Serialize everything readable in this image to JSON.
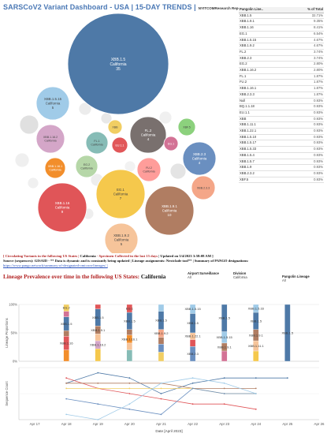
{
  "header": {
    "title": "SARSCoV2 Variant Dashboard - USA | 15-DAY TRENDS |",
    "credit": "NYITCOMResearch Report"
  },
  "bubbles": [
    {
      "name": "XBB.1.5",
      "label": "California",
      "count": "35",
      "color": "#4e79a7"
    },
    {
      "name": "XBB.1.5.15",
      "label": "California",
      "count": "5",
      "color": "#a0cbe8"
    },
    {
      "name": "XBB.1.16.2",
      "label": "California",
      "count": "",
      "color": "#d4a6c8"
    },
    {
      "name": "FL.1",
      "label": "California",
      "count": "",
      "color": "#86bcb6"
    },
    {
      "name": "XBB",
      "label": "",
      "count": "",
      "color": "#f1ce63"
    },
    {
      "name": "FL.2",
      "label": "California",
      "count": "4",
      "color": "#79706e"
    },
    {
      "name": "XBF.5",
      "label": "",
      "count": "",
      "color": "#8cd17d"
    },
    {
      "name": "EU.1.1",
      "label": "",
      "count": "",
      "color": "#e15759"
    },
    {
      "name": "EG.1",
      "label": "",
      "count": "",
      "color": "#d37295"
    },
    {
      "name": "XBB.2.3",
      "label": "California",
      "count": "4",
      "color": "#6a8fc0"
    },
    {
      "name": "XBB.1.16.1",
      "label": "California",
      "count": "",
      "color": "#f28e2b"
    },
    {
      "name": "EG.2",
      "label": "California",
      "count": "",
      "color": "#b6d7a8"
    },
    {
      "name": "FU.2",
      "label": "California",
      "count": "",
      "color": "#ff9d9a"
    },
    {
      "name": "XBB.2.3.3",
      "label": "",
      "count": "",
      "color": "#f4a688"
    },
    {
      "name": "XBB.1.16",
      "label": "California",
      "count": "9",
      "color": "#e05558"
    },
    {
      "name": "EG.1",
      "label": "California",
      "count": "7",
      "color": "#f5c84c"
    },
    {
      "name": "XBB.1.9.1",
      "label": "California",
      "count": "10",
      "color": "#b07d62"
    },
    {
      "name": "XBB.1.9.2",
      "label": "California",
      "count": "5",
      "color": "#f6c49a"
    }
  ],
  "lineage_table": {
    "headers": [
      "Pangolin Line..",
      "% of Total"
    ],
    "rows": [
      [
        "XBB.1.5",
        "32.71%"
      ],
      [
        "XBB.1.9.1",
        "9.35%"
      ],
      [
        "XBB.1.16",
        "8.41%"
      ],
      [
        "EG.1",
        "6.54%"
      ],
      [
        "XBB.1.5.15",
        "4.67%"
      ],
      [
        "XBB.1.9.2",
        "4.67%"
      ],
      [
        "FL.2",
        "3.74%"
      ],
      [
        "XBB.2.3",
        "3.74%"
      ],
      [
        "EG.2",
        "2.80%"
      ],
      [
        "XBB.1.16.2",
        "2.80%"
      ],
      [
        "FL.1",
        "1.87%"
      ],
      [
        "FU.2",
        "1.87%"
      ],
      [
        "XBB.1.16.1",
        "1.87%"
      ],
      [
        "XBB.2.3.3",
        "1.87%"
      ],
      [
        "Null",
        "0.93%"
      ],
      [
        "BQ.1.1.18",
        "0.93%"
      ],
      [
        "EU.1.1",
        "0.93%"
      ],
      [
        "XBB",
        "0.93%"
      ],
      [
        "XBB.1.11.1",
        "0.93%"
      ],
      [
        "XBB.1.22.1",
        "0.93%"
      ],
      [
        "XBB.1.5.10",
        "0.93%"
      ],
      [
        "XBB.1.5.17",
        "0.93%"
      ],
      [
        "XBB.1.5.33",
        "0.93%"
      ],
      [
        "XBB.1.5.4",
        "0.93%"
      ],
      [
        "XBB.1.5.7",
        "0.93%"
      ],
      [
        "XBB.1.9",
        "0.93%"
      ],
      [
        "XBB.2.3.2",
        "0.93%"
      ],
      [
        "XBF.5",
        "0.93%"
      ]
    ]
  },
  "info": {
    "line1_red_a": "[ Circulating Variants in the following US States |",
    "line1_state": "California",
    "line1_red_b": "- Specimen Collected in the last 15 days",
    "line1_updated": "| Updated on 5/4/2023 3:58:08 AM ]",
    "line2": "Source (sequences): GISAID - ** Data is dynamic and is constantly being updated | Lineage assignments: Nextclade tool** | Summary of PANGO designations:",
    "link": "https://www.pango.network/summary-of-designated-omicron-lineages/ |"
  },
  "prevalence": {
    "title_red": "Lineage Prevalence over time in the following US States:",
    "title_state": "California"
  },
  "filters": {
    "airport": {
      "label": "Airport Surveillance",
      "value": "All"
    },
    "division": {
      "label": "Division",
      "value": "California"
    },
    "pangolin": {
      "label": "Pangolin Lineage",
      "value": "All"
    }
  },
  "chart_data": {
    "type": "bar",
    "stacked": true,
    "title": "",
    "x": [
      "Apr 17",
      "Apr 18",
      "Apr 19",
      "Apr 20",
      "Apr 21",
      "Apr 22",
      "Apr 23",
      "Apr 24",
      "Apr 25",
      "Apr 26"
    ],
    "xlabel": "Date [April 2023]",
    "ylabel_top": "Lineage Proportions",
    "yticks_top": [
      "100%",
      "50%",
      "0%"
    ],
    "ylabel_bottom": "Sequence Count",
    "bars": [
      {
        "date": "Apr 18",
        "segments": [
          {
            "lineage": "EG.2",
            "pct": 12,
            "color": "#f1ce63",
            "label": "EG.2"
          },
          {
            "lineage": "XBB.1.5",
            "pct": 10,
            "color": "#d37295",
            "label": ""
          },
          {
            "lineage": "XBB.1.5",
            "pct": 24,
            "color": "#4e79a7",
            "label": "XBB.1.5"
          },
          {
            "lineage": "XBB.1.9.1",
            "pct": 10,
            "color": "#b07d62",
            "label": ""
          },
          {
            "lineage": "XBB.1.16",
            "pct": 24,
            "color": "#e05558",
            "label": "XBB.1.16"
          },
          {
            "lineage": "XBB.1.16.1",
            "pct": 20,
            "color": "#f28e2b",
            "label": ""
          }
        ]
      },
      {
        "date": "Apr 19",
        "segments": [
          {
            "lineage": "XBB.1.5",
            "pct": 8,
            "color": "#e15759",
            "label": ""
          },
          {
            "lineage": "XBB.1.5",
            "pct": 30,
            "color": "#4e79a7",
            "label": "XBB.1.5"
          },
          {
            "lineage": "XBB.1.9.1",
            "pct": 14,
            "color": "#b07d62",
            "label": "XBB.1.9.1"
          },
          {
            "lineage": "XBB.1.9.2",
            "pct": 12,
            "color": "#f6c49a",
            "label": ""
          },
          {
            "lineage": "XBB.1.16.2",
            "pct": 14,
            "color": "#d4a6c8",
            "label": "XBB.1.16.2"
          },
          {
            "lineage": "EG.1",
            "pct": 22,
            "color": "#f5c84c",
            "label": ""
          }
        ]
      },
      {
        "date": "Apr 20",
        "segments": [
          {
            "lineage": "EG.1",
            "pct": 14,
            "color": "#e15759",
            "label": "EG.1"
          },
          {
            "lineage": "XBB.1.5",
            "pct": 30,
            "color": "#4e79a7",
            "label": "XBB.1.5"
          },
          {
            "lineage": "XBB.1.9.1",
            "pct": 10,
            "color": "#b07d62",
            "label": ""
          },
          {
            "lineage": "XBB.1.16.1",
            "pct": 14,
            "color": "#f28e2b",
            "label": "XBB.1.16.1"
          },
          {
            "lineage": "XBB.1.9.2",
            "pct": 12,
            "color": "#f6c49a",
            "label": ""
          },
          {
            "lineage": "XBB.2.3",
            "pct": 20,
            "color": "#86bcb6",
            "label": ""
          }
        ]
      },
      {
        "date": "Apr 21",
        "segments": [
          {
            "lineage": "XBB.1.5",
            "pct": 12,
            "color": "#a0cbe8",
            "label": ""
          },
          {
            "lineage": "XBB.1.5",
            "pct": 32,
            "color": "#4e79a7",
            "label": "XBB.1.5"
          },
          {
            "lineage": "XBB.1.9.2",
            "pct": 14,
            "color": "#f4a688",
            "label": "XBB.1.9.2"
          },
          {
            "lineage": "XBB.1.9.1",
            "pct": 12,
            "color": "#b07d62",
            "label": ""
          },
          {
            "lineage": "XBB.2.3",
            "pct": 14,
            "color": "#6a8fc0",
            "label": ""
          },
          {
            "lineage": "EG.1",
            "pct": 16,
            "color": "#f1ce63",
            "label": ""
          }
        ]
      },
      {
        "date": "Apr 22",
        "segments": [
          {
            "lineage": "XBB.1.5.15",
            "pct": 16,
            "color": "#a0cbe8",
            "label": "XBB.1.5.15"
          },
          {
            "lineage": "XBB.1.5",
            "pct": 34,
            "color": "#4e79a7",
            "label": "XBB.1.5"
          },
          {
            "lineage": "XBB.1.22.1",
            "pct": 12,
            "color": "#f6c49a",
            "label": "XBB.1.22.1"
          },
          {
            "lineage": "XBB.1.16",
            "pct": 12,
            "color": "#e05558",
            "label": ""
          },
          {
            "lineage": "XBB.2.3",
            "pct": 26,
            "color": "#6a8fc0",
            "label": "XBB.2.3"
          }
        ]
      },
      {
        "date": "Apr 23",
        "segments": [
          {
            "lineage": "XBB.1.5",
            "pct": 48,
            "color": "#4e79a7",
            "label": "XBB.1.5"
          },
          {
            "lineage": "XBB.1.5.15",
            "pct": 20,
            "color": "#a0cbe8",
            "label": "XBB.1.5.15"
          },
          {
            "lineage": "XBB.1.9.1",
            "pct": 14,
            "color": "#b07d62",
            "label": "XBB.1.9.1"
          },
          {
            "lineage": "XBB.1.16",
            "pct": 18,
            "color": "#d37295",
            "label": ""
          }
        ]
      },
      {
        "date": "Apr 24",
        "segments": [
          {
            "lineage": "XBB.1.5.33",
            "pct": 14,
            "color": "#a0cbe8",
            "label": "XBB.1.5.33"
          },
          {
            "lineage": "XBB.1.5",
            "pct": 30,
            "color": "#4e79a7",
            "label": "XBB.1.5"
          },
          {
            "lineage": "XBB.1.9.1",
            "pct": 20,
            "color": "#b07d62",
            "label": "XBB.1.9.1"
          },
          {
            "lineage": "XBB.1.11.1",
            "pct": 18,
            "color": "#f6c49a",
            "label": "XBB.1.11.1"
          },
          {
            "lineage": "EG.1",
            "pct": 18,
            "color": "#f5c84c",
            "label": ""
          }
        ]
      },
      {
        "date": "Apr 25",
        "segments": [
          {
            "lineage": "XBB.1.5",
            "pct": 100,
            "color": "#4e79a7",
            "label": "XBB.1.5"
          }
        ]
      }
    ],
    "lines": [
      {
        "name": "XBB.1.5",
        "color": "#4e79a7",
        "points": [
          [
            "Apr 18",
            7
          ],
          [
            "Apr 19",
            9
          ],
          [
            "Apr 20",
            8
          ],
          [
            "Apr 21",
            5
          ],
          [
            "Apr 22",
            7
          ],
          [
            "Apr 23",
            8
          ],
          [
            "Apr 24",
            8
          ],
          [
            "Apr 25",
            8
          ]
        ]
      },
      {
        "name": "XBB.1.16",
        "color": "#e05558",
        "points": [
          [
            "Apr 18",
            8
          ],
          [
            "Apr 19",
            6
          ],
          [
            "Apr 20",
            5
          ],
          [
            "Apr 21",
            4
          ],
          [
            "Apr 22",
            3
          ],
          [
            "Apr 23",
            3
          ],
          [
            "Apr 24",
            2
          ]
        ]
      },
      {
        "name": "XBB.1.9.1",
        "color": "#b07d62",
        "points": [
          [
            "Apr 18",
            7
          ],
          [
            "Apr 19",
            7
          ],
          [
            "Apr 20",
            7
          ],
          [
            "Apr 21",
            7
          ],
          [
            "Apr 22",
            6
          ],
          [
            "Apr 23",
            6
          ],
          [
            "Apr 24",
            6
          ]
        ]
      },
      {
        "name": "EG.1",
        "color": "#f1ce63",
        "points": [
          [
            "Apr 18",
            6
          ],
          [
            "Apr 19",
            6
          ],
          [
            "Apr 20",
            6
          ],
          [
            "Apr 21",
            6
          ],
          [
            "Apr 22",
            6
          ],
          [
            "Apr 23",
            5
          ],
          [
            "Apr 24",
            5
          ]
        ]
      },
      {
        "name": "XBB.2.3",
        "color": "#6a8fc0",
        "points": [
          [
            "Apr 18",
            4
          ],
          [
            "Apr 19",
            3
          ],
          [
            "Apr 20",
            2
          ],
          [
            "Apr 21",
            1
          ],
          [
            "Apr 22",
            6
          ],
          [
            "Apr 23",
            5
          ],
          [
            "Apr 24",
            5
          ]
        ]
      },
      {
        "name": "XBB.1.5.15",
        "color": "#a0cbe8",
        "points": [
          [
            "Apr 18",
            1
          ],
          [
            "Apr 19",
            0
          ],
          [
            "Apr 20",
            3
          ],
          [
            "Apr 21",
            7
          ],
          [
            "Apr 22",
            8
          ],
          [
            "Apr 23",
            7
          ],
          [
            "Apr 24",
            5
          ]
        ]
      }
    ]
  }
}
